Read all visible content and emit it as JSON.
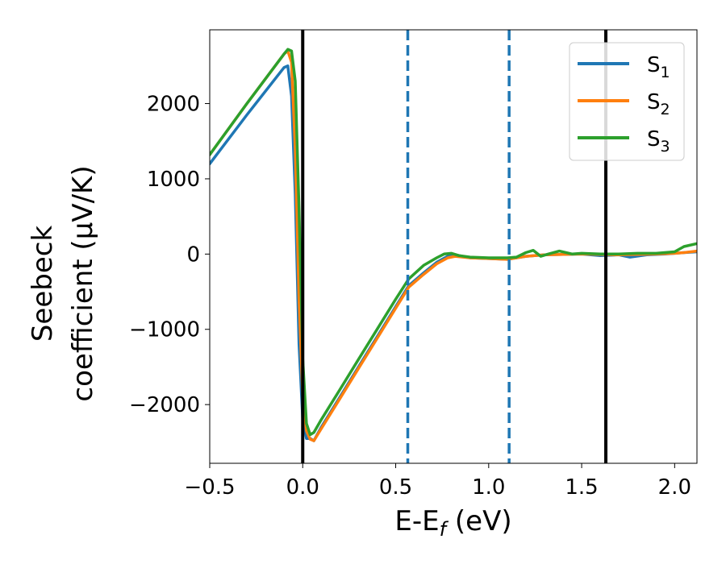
{
  "chart_data": {
    "type": "line",
    "title": "",
    "xlabel": "E-E",
    "xlabel_sub": "f",
    "xlabel_suffix": " (eV)",
    "ylabel_line1": "Seebeck",
    "ylabel_line2": "coefficient  (μV/K)",
    "xlim": [
      -0.5,
      2.12
    ],
    "ylim": [
      -2780,
      2980
    ],
    "xticks": [
      -0.5,
      0.0,
      0.5,
      1.0,
      1.5,
      2.0
    ],
    "xtick_labels": [
      "−0.5",
      "0.0",
      "0.5",
      "1.0",
      "1.5",
      "2.0"
    ],
    "yticks": [
      -2000,
      -1000,
      0,
      1000,
      2000
    ],
    "ytick_labels": [
      "−2000",
      "−1000",
      "0",
      "1000",
      "2000"
    ],
    "grid": false,
    "legend_position": "top-right",
    "vlines": [
      {
        "x": 0.0,
        "style": "solid",
        "color": "#000000"
      },
      {
        "x": 0.565,
        "style": "dashed",
        "color": "#1f77b4"
      },
      {
        "x": 1.11,
        "style": "dashed",
        "color": "#1f77b4"
      },
      {
        "x": 1.63,
        "style": "solid",
        "color": "#000000"
      }
    ],
    "series": [
      {
        "name": "S",
        "sub": "1",
        "color": "#1f77b4",
        "x": [
          -0.5,
          -0.3,
          -0.1,
          -0.08,
          -0.06,
          -0.04,
          -0.02,
          0.0,
          0.02,
          0.04,
          0.06,
          0.1,
          0.2,
          0.3,
          0.4,
          0.5,
          0.57,
          0.65,
          0.72,
          0.78,
          0.82,
          0.9,
          1.0,
          1.1,
          1.2,
          1.3,
          1.4,
          1.5,
          1.6,
          1.7,
          1.76,
          1.85,
          1.95,
          2.05,
          2.12
        ],
        "y": [
          1200,
          1850,
          2480,
          2500,
          2100,
          800,
          -1200,
          -2200,
          -2450,
          -2450,
          -2480,
          -2300,
          -1900,
          -1500,
          -1100,
          -700,
          -420,
          -250,
          -110,
          -30,
          -10,
          -50,
          -60,
          -70,
          -30,
          -10,
          -5,
          0,
          -20,
          -10,
          -40,
          -10,
          0,
          20,
          30
        ]
      },
      {
        "name": "S",
        "sub": "2",
        "color": "#ff7f0e",
        "x": [
          -0.5,
          -0.3,
          -0.1,
          -0.08,
          -0.06,
          -0.04,
          -0.02,
          0.0,
          0.02,
          0.04,
          0.06,
          0.1,
          0.2,
          0.3,
          0.4,
          0.5,
          0.57,
          0.65,
          0.72,
          0.78,
          0.82,
          0.9,
          1.0,
          1.1,
          1.2,
          1.3,
          1.4,
          1.5,
          1.6,
          1.7,
          1.8,
          1.9,
          2.0,
          2.05,
          2.12
        ],
        "y": [
          1320,
          2000,
          2660,
          2700,
          2550,
          1400,
          -600,
          -1900,
          -2350,
          -2460,
          -2480,
          -2320,
          -1920,
          -1520,
          -1120,
          -720,
          -440,
          -270,
          -130,
          -50,
          -30,
          -50,
          -60,
          -70,
          -30,
          -10,
          -5,
          0,
          -5,
          -10,
          -5,
          0,
          10,
          20,
          40
        ]
      },
      {
        "name": "S",
        "sub": "3",
        "color": "#2ca02c",
        "x": [
          -0.5,
          -0.3,
          -0.1,
          -0.08,
          -0.06,
          -0.04,
          -0.02,
          0.0,
          0.02,
          0.04,
          0.06,
          0.1,
          0.2,
          0.3,
          0.4,
          0.5,
          0.57,
          0.65,
          0.72,
          0.76,
          0.8,
          0.84,
          0.9,
          1.0,
          1.1,
          1.15,
          1.2,
          1.24,
          1.28,
          1.32,
          1.38,
          1.45,
          1.5,
          1.6,
          1.7,
          1.8,
          1.9,
          2.0,
          2.05,
          2.12
        ],
        "y": [
          1320,
          2000,
          2660,
          2720,
          2700,
          2300,
          600,
          -1400,
          -2250,
          -2400,
          -2370,
          -2200,
          -1800,
          -1400,
          -1000,
          -600,
          -330,
          -150,
          -50,
          0,
          10,
          -20,
          -40,
          -50,
          -50,
          -40,
          20,
          50,
          -30,
          0,
          40,
          0,
          10,
          0,
          0,
          10,
          10,
          30,
          100,
          140
        ]
      }
    ]
  }
}
